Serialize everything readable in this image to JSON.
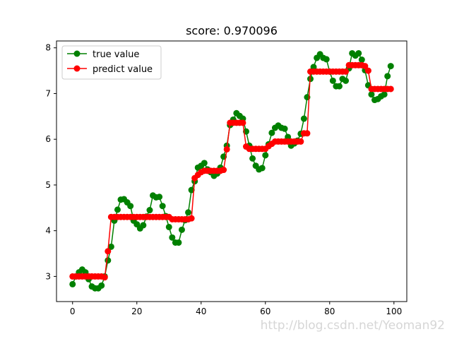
{
  "chart_data": {
    "type": "line",
    "title": "score: 0.970096",
    "xlim": [
      -5,
      104
    ],
    "ylim": [
      2.45,
      8.15
    ],
    "xticks": [
      0,
      20,
      40,
      60,
      80,
      100
    ],
    "yticks": [
      3,
      4,
      5,
      6,
      7,
      8
    ],
    "grid": false,
    "legend": "top-left",
    "series": [
      {
        "name": "true value",
        "color": "#008000",
        "values": [
          2.83,
          3.0,
          3.09,
          3.15,
          3.09,
          2.94,
          2.78,
          2.74,
          2.74,
          2.8,
          3.0,
          3.35,
          3.65,
          4.22,
          4.46,
          4.68,
          4.69,
          4.62,
          4.54,
          4.22,
          4.14,
          4.05,
          4.12,
          4.31,
          4.45,
          4.77,
          4.73,
          4.74,
          4.54,
          4.32,
          4.08,
          3.85,
          3.74,
          3.74,
          4.02,
          4.23,
          4.4,
          4.89,
          5.08,
          5.38,
          5.42,
          5.48,
          5.34,
          5.28,
          5.2,
          5.25,
          5.38,
          5.62,
          5.86,
          6.31,
          6.43,
          6.57,
          6.51,
          6.45,
          6.17,
          5.86,
          5.58,
          5.42,
          5.34,
          5.37,
          5.65,
          5.89,
          6.14,
          6.25,
          6.3,
          6.25,
          6.23,
          6.05,
          5.86,
          5.91,
          5.97,
          6.12,
          6.45,
          6.92,
          7.32,
          7.58,
          7.78,
          7.86,
          7.78,
          7.75,
          7.48,
          7.28,
          7.16,
          7.16,
          7.32,
          7.28,
          7.55,
          7.88,
          7.83,
          7.88,
          7.74,
          7.51,
          7.18,
          6.98,
          6.86,
          6.88,
          6.94,
          6.98,
          7.38,
          7.6
        ]
      },
      {
        "name": "predict value",
        "color": "#ff0000",
        "values": [
          3.0,
          3.0,
          3.0,
          3.0,
          3.0,
          3.0,
          3.0,
          3.0,
          3.0,
          3.0,
          2.98,
          3.55,
          4.3,
          4.3,
          4.3,
          4.3,
          4.3,
          4.3,
          4.3,
          4.3,
          4.3,
          4.3,
          4.3,
          4.3,
          4.3,
          4.3,
          4.3,
          4.3,
          4.3,
          4.3,
          4.3,
          4.25,
          4.25,
          4.25,
          4.25,
          4.25,
          4.25,
          4.27,
          5.15,
          5.22,
          5.28,
          5.31,
          5.31,
          5.31,
          5.31,
          5.31,
          5.31,
          5.33,
          5.78,
          6.36,
          6.36,
          6.36,
          6.36,
          6.36,
          5.84,
          5.79,
          5.79,
          5.79,
          5.79,
          5.79,
          5.79,
          5.85,
          5.9,
          5.95,
          5.95,
          5.95,
          5.95,
          5.95,
          5.95,
          5.95,
          5.95,
          5.95,
          6.13,
          6.13,
          7.48,
          7.48,
          7.48,
          7.48,
          7.48,
          7.48,
          7.48,
          7.48,
          7.48,
          7.48,
          7.48,
          7.48,
          7.62,
          7.62,
          7.62,
          7.62,
          7.62,
          7.6,
          7.5,
          7.1,
          7.1,
          7.1,
          7.1,
          7.1,
          7.1,
          7.1
        ]
      }
    ]
  },
  "watermark": "http://blog.csdn.net/Yeoman92"
}
